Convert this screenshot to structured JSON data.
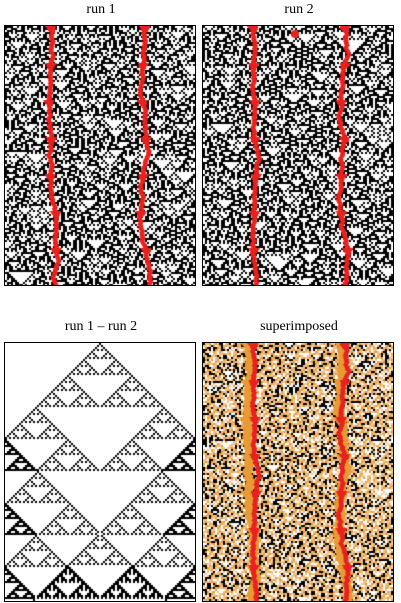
{
  "panels": [
    {
      "id": "run1",
      "title": "run 1"
    },
    {
      "id": "run2",
      "title": "run 2"
    },
    {
      "id": "diff",
      "title": "run 1 – run 2"
    },
    {
      "id": "super",
      "title": "superimposed"
    }
  ],
  "colors": {
    "cell": "#000000",
    "highlight": "#e8211c",
    "superimposed_light": "#f2c38a",
    "superimposed_mid": "#e89a35",
    "background": "#ffffff"
  }
}
